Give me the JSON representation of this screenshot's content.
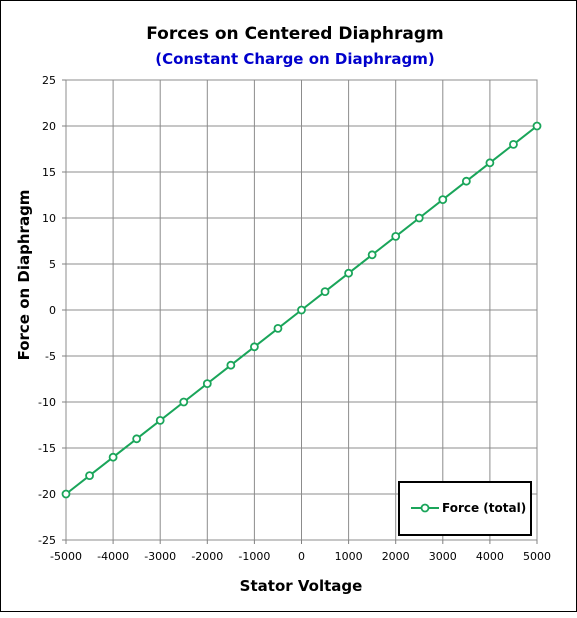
{
  "chart_data": {
    "type": "line",
    "title": "Forces on Centered Diaphragm",
    "subtitle": "(Constant Charge on Diaphragm)",
    "xlabel": "Stator Voltage",
    "ylabel": "Force on Diaphragm",
    "xlim": [
      -5000,
      5000
    ],
    "ylim": [
      -25,
      25
    ],
    "x_ticks": [
      "-5000",
      "-4000",
      "-3000",
      "-2000",
      "-1000",
      "0",
      "1000",
      "2000",
      "3000",
      "4000",
      "5000"
    ],
    "y_ticks": [
      "25",
      "20",
      "15",
      "10",
      "5",
      "0",
      "-5",
      "-10",
      "-15",
      "-20",
      "-25"
    ],
    "grid": true,
    "legend_position": "bottom-right",
    "series": [
      {
        "name": "Force (total)",
        "color": "#1aa55a",
        "marker": "open-circle",
        "x": [
          -5000,
          -4500,
          -4000,
          -3500,
          -3000,
          -2500,
          -2000,
          -1500,
          -1000,
          -500,
          0,
          500,
          1000,
          1500,
          2000,
          2500,
          3000,
          3500,
          4000,
          4500,
          5000
        ],
        "y": [
          -20,
          -18,
          -16,
          -14,
          -12,
          -10,
          -8,
          -6,
          -4,
          -2,
          0,
          2,
          4,
          6,
          8,
          10,
          12,
          14,
          16,
          18,
          20
        ]
      }
    ]
  }
}
